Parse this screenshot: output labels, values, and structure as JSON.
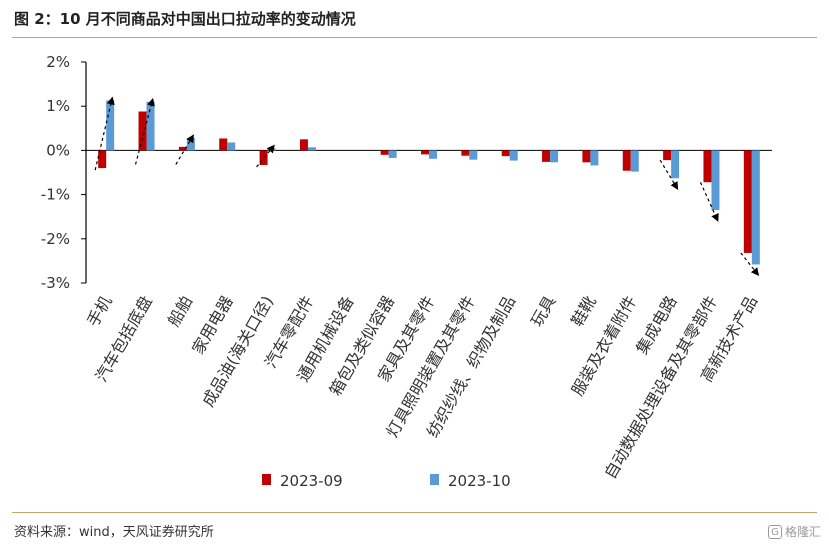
{
  "figure": {
    "title": "图 2：10 月不同商品对中国出口拉动率的变动情况",
    "source": "资料来源：wind，天风证券研究所",
    "watermark": "格隆汇",
    "watermark_logo": "G",
    "accent_color": "#c8a46a"
  },
  "chart_data": {
    "type": "bar",
    "categories": [
      "手机",
      "汽车包括底盘",
      "船舶",
      "家用电器",
      "成品油(海关口径)",
      "汽车零配件",
      "通用机械设备",
      "箱包及类似容器",
      "家具及其零件",
      "灯具照明装置及其零件",
      "纺织纱线、织物及制品",
      "玩具",
      "鞋靴",
      "服装及衣着附件",
      "集成电路",
      "自动数据处理设备及其零部件",
      "高新技术产品"
    ],
    "series": [
      {
        "name": "2023-09",
        "color": "#c00000",
        "values": [
          -0.4,
          0.88,
          0.08,
          0.27,
          -0.33,
          0.25,
          0.0,
          -0.1,
          -0.09,
          -0.12,
          -0.13,
          -0.26,
          -0.27,
          -0.46,
          -0.22,
          -0.72,
          -2.32
        ]
      },
      {
        "name": "2023-10",
        "color": "#5b9bd5",
        "values": [
          1.13,
          1.1,
          0.28,
          0.18,
          0.05,
          0.07,
          0.0,
          -0.17,
          -0.19,
          -0.21,
          -0.23,
          -0.27,
          -0.34,
          -0.48,
          -0.63,
          -1.35,
          -2.58
        ]
      }
    ],
    "yticks": [
      "2%",
      "1%",
      "0%",
      "-1%",
      "-2%",
      "-3%"
    ],
    "ylim": [
      -3,
      2
    ],
    "arrows_from_series": "2023-09",
    "arrows_to_series": "2023-10",
    "arrow_categories": [
      0,
      1,
      2,
      4,
      14,
      15,
      16
    ],
    "legend_position": "bottom-center",
    "grid": false
  }
}
